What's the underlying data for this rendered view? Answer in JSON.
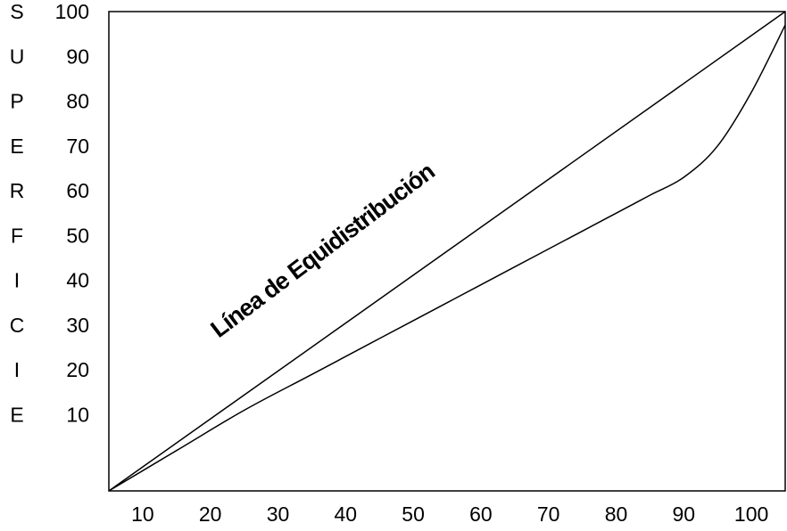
{
  "chart_data": {
    "type": "line",
    "title": "",
    "xlabel": "",
    "ylabel": "SUPERFICIE",
    "ylabel_letters": [
      "S",
      "U",
      "P",
      "E",
      "R",
      "F",
      "I",
      "C",
      "I",
      "E"
    ],
    "x_ticks": [
      "10",
      "20",
      "30",
      "40",
      "50",
      "60",
      "70",
      "80",
      "90",
      "100"
    ],
    "y_ticks": [
      "100",
      "90",
      "80",
      "70",
      "60",
      "50",
      "40",
      "30",
      "20",
      "10"
    ],
    "xlim": [
      5,
      105
    ],
    "ylim": [
      -7,
      100
    ],
    "grid": false,
    "series": [
      {
        "name": "",
        "x": [
          5,
          105
        ],
        "y": [
          -7,
          100
        ]
      },
      {
        "name": "",
        "x": [
          5,
          15,
          25,
          35,
          45,
          55,
          65,
          75,
          80,
          85,
          90,
          95,
          100,
          105
        ],
        "y": [
          -7,
          2,
          11,
          19,
          27,
          35,
          43,
          51,
          55,
          59,
          63,
          70,
          82,
          97
        ]
      }
    ],
    "annotations": [
      {
        "text": "Línea de Equidistribución"
      }
    ]
  }
}
